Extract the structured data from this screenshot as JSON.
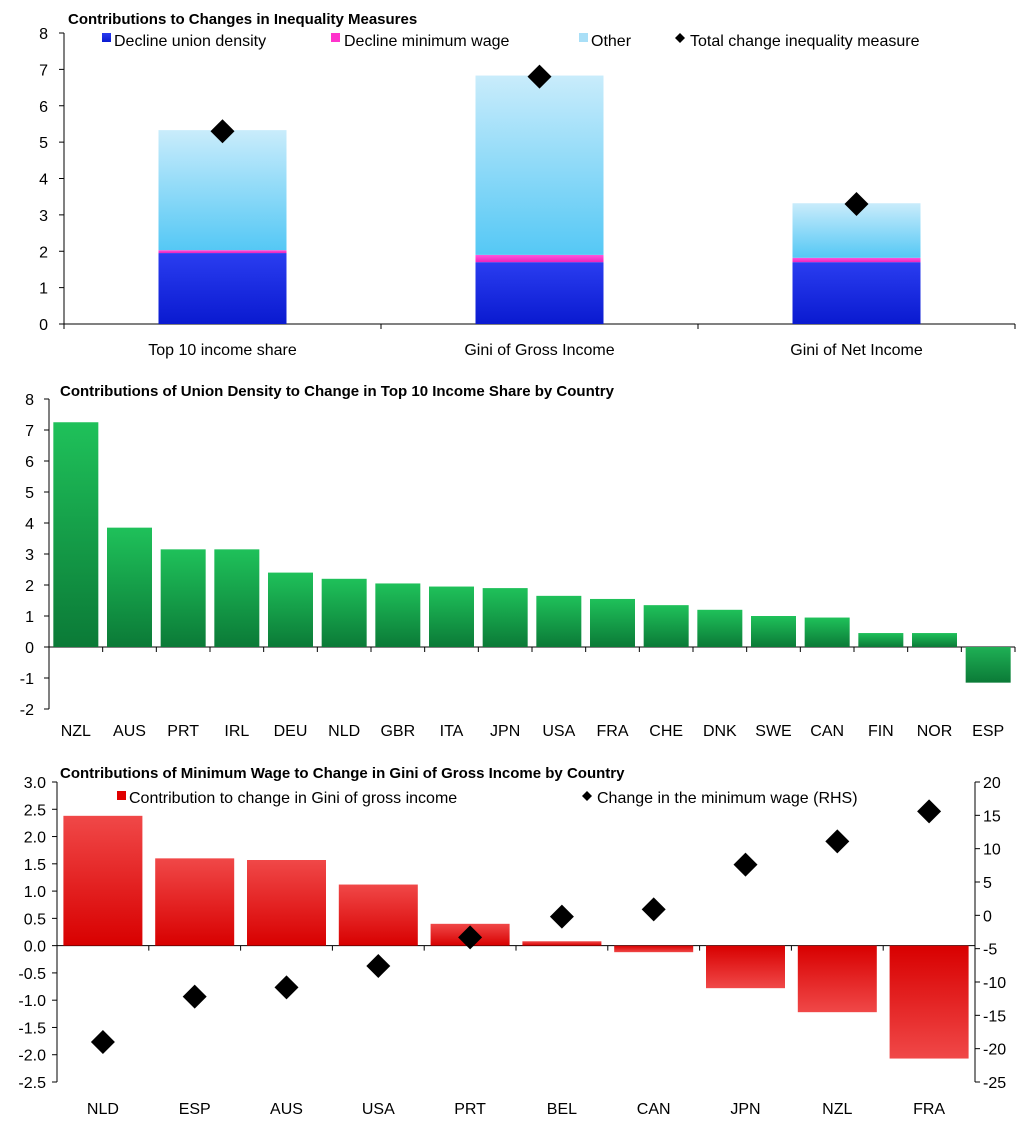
{
  "chart_data": [
    {
      "type": "bar",
      "stacked": true,
      "title": "Contributions to Changes in Inequality Measures",
      "categories": [
        "Top 10 income share",
        "Gini of Gross Income",
        "Gini of Net Income"
      ],
      "ylim": [
        0,
        8
      ],
      "yticks": [
        0,
        1,
        2,
        3,
        4,
        5,
        6,
        7,
        8
      ],
      "legend_position": "top",
      "series": [
        {
          "name": "Decline union density",
          "kind": "bar",
          "color": "#1a2ee8",
          "values": [
            1.95,
            1.7,
            1.7
          ]
        },
        {
          "name": "Decline minimum wage",
          "kind": "bar",
          "color": "#ff33cc",
          "values": [
            0.08,
            0.2,
            0.12
          ]
        },
        {
          "name": "Other",
          "kind": "bar",
          "color": "#a9dff7",
          "values": [
            3.3,
            4.93,
            1.5
          ]
        },
        {
          "name": "Total change inequality measure",
          "kind": "scatter",
          "marker": "diamond",
          "color": "#000000",
          "values": [
            5.3,
            6.8,
            3.3
          ]
        }
      ]
    },
    {
      "type": "bar",
      "title": "Contributions of Union Density to Change in Top 10 Income Share by Country",
      "categories": [
        "NZL",
        "AUS",
        "PRT",
        "IRL",
        "DEU",
        "NLD",
        "GBR",
        "ITA",
        "JPN",
        "USA",
        "FRA",
        "CHE",
        "DNK",
        "SWE",
        "CAN",
        "FIN",
        "NOR",
        "ESP"
      ],
      "ylim": [
        -2,
        8
      ],
      "yticks": [
        -2,
        -1,
        0,
        1,
        2,
        3,
        4,
        5,
        6,
        7,
        8
      ],
      "color": "#13a84a",
      "values": [
        7.25,
        3.85,
        3.15,
        3.15,
        2.4,
        2.2,
        2.05,
        1.95,
        1.9,
        1.65,
        1.55,
        1.35,
        1.2,
        1.0,
        0.95,
        0.45,
        0.45,
        -1.15
      ]
    },
    {
      "type": "bar",
      "title": "Contributions of Minimum Wage to Change in Gini of Gross Income by Country",
      "categories": [
        "NLD",
        "ESP",
        "AUS",
        "USA",
        "PRT",
        "BEL",
        "CAN",
        "JPN",
        "NZL",
        "FRA"
      ],
      "ylim": [
        -2.5,
        3.0
      ],
      "yticks": [
        -2.5,
        -2.0,
        -1.5,
        -1.0,
        -0.5,
        0.0,
        0.5,
        1.0,
        1.5,
        2.0,
        2.5,
        3.0
      ],
      "y2lim": [
        -25,
        20
      ],
      "y2ticks": [
        -25,
        -20,
        -15,
        -10,
        -5,
        0,
        5,
        10,
        15,
        20
      ],
      "legend_position": "top",
      "series": [
        {
          "name": "Contribution to change in Gini of gross income",
          "kind": "bar",
          "axis": "left",
          "color": "#e00000",
          "values": [
            2.38,
            1.6,
            1.57,
            1.12,
            0.4,
            0.08,
            -0.12,
            -0.78,
            -1.22,
            -2.07
          ]
        },
        {
          "name": "Change in the minimum wage (RHS)",
          "kind": "scatter",
          "marker": "diamond",
          "axis": "right",
          "color": "#000000",
          "values": [
            -19.0,
            -12.2,
            -10.8,
            -7.6,
            -3.3,
            -0.2,
            0.9,
            7.6,
            11.1,
            15.6
          ]
        }
      ]
    }
  ]
}
